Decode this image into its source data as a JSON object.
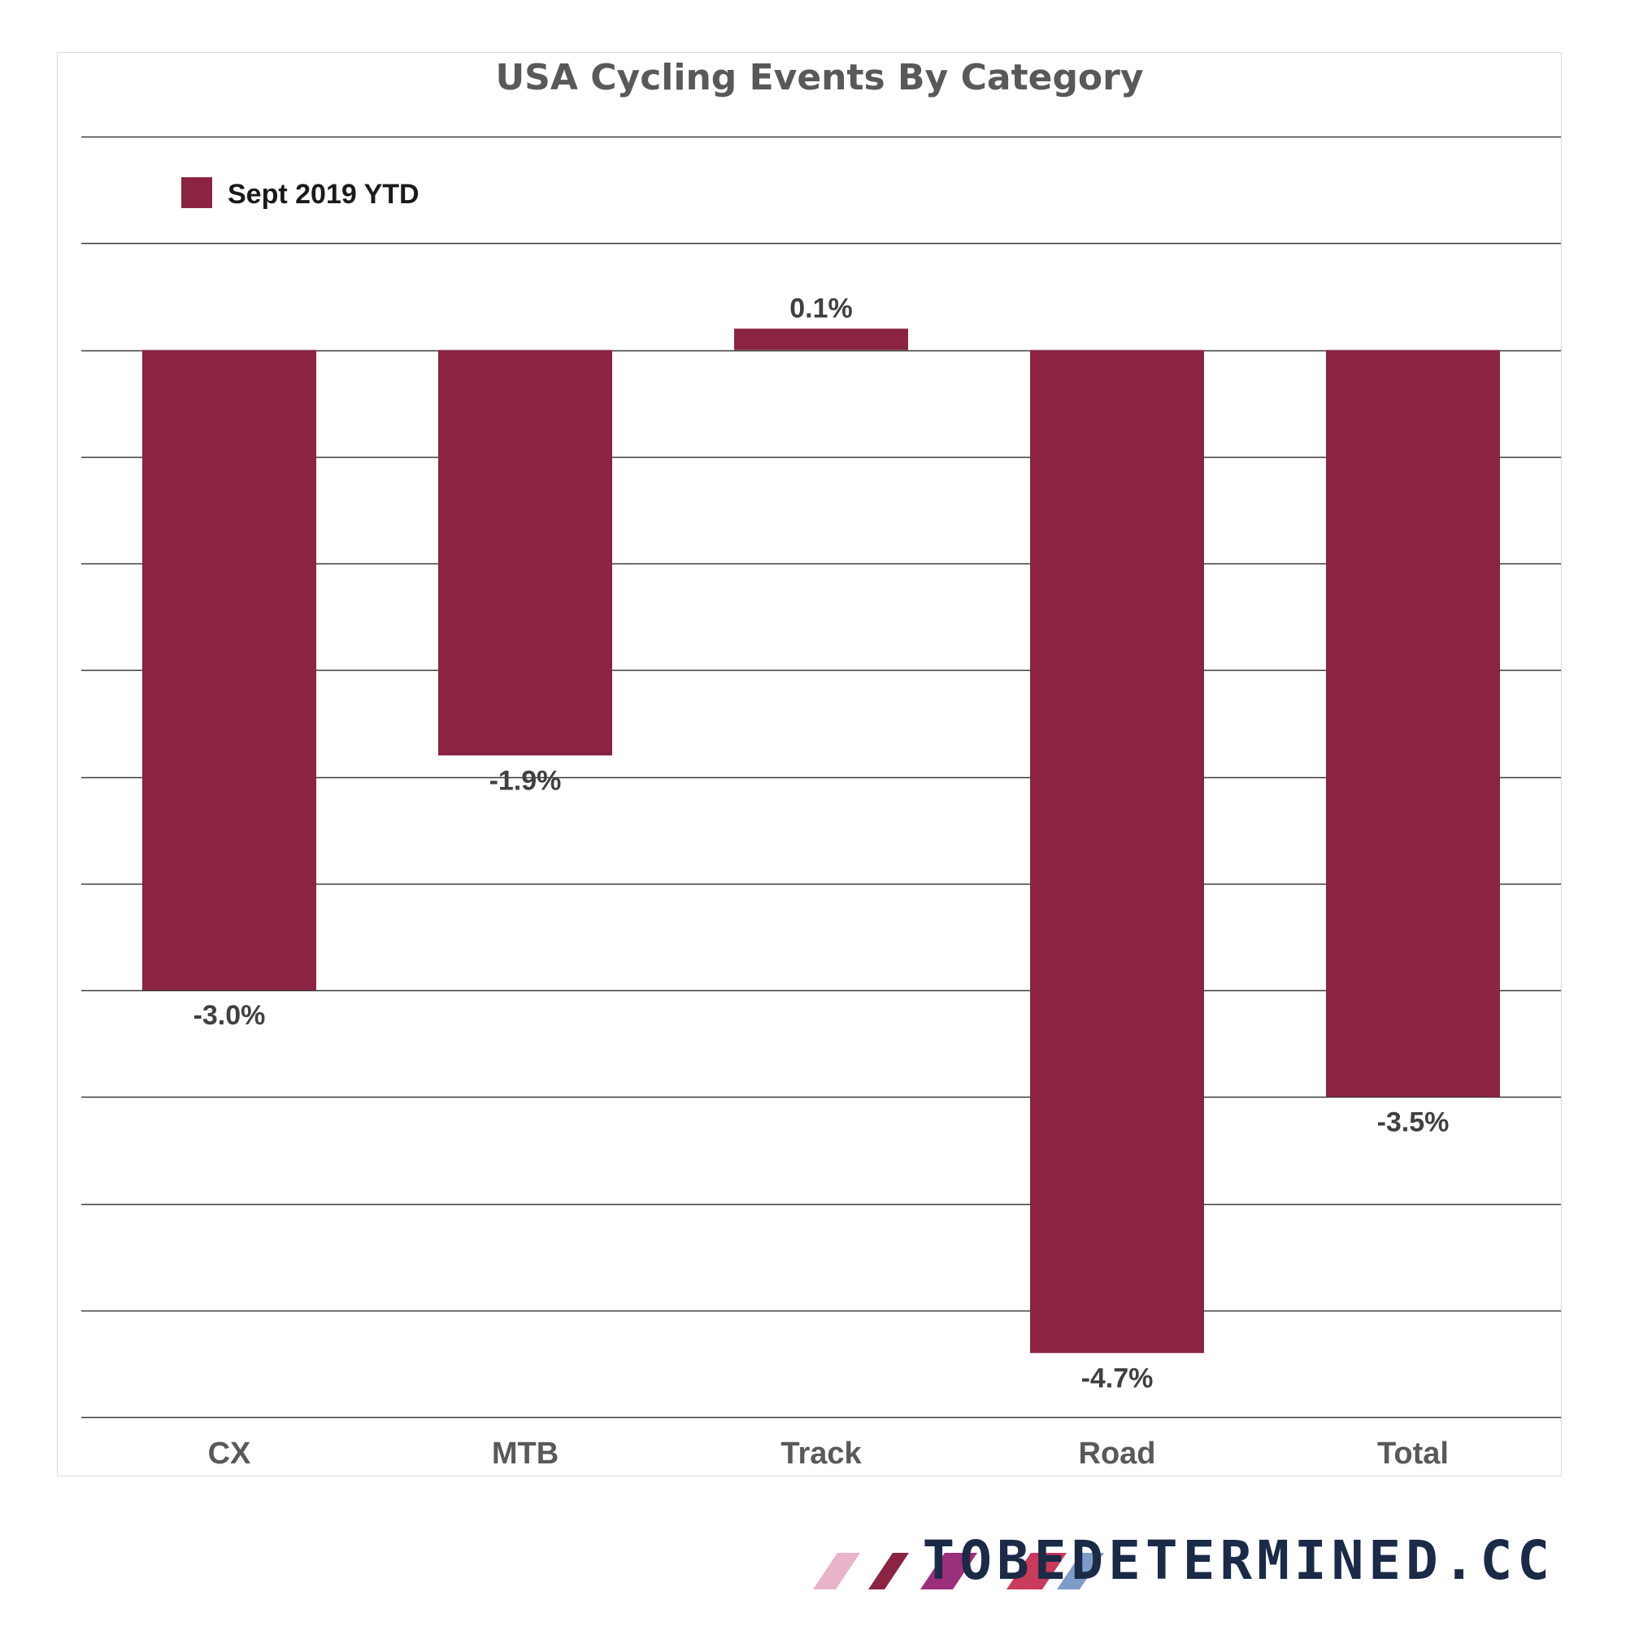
{
  "chart_data": {
    "type": "bar",
    "title": "USA Cycling Events By Category",
    "categories": [
      "CX",
      "MTB",
      "Track",
      "Road",
      "Total"
    ],
    "series": [
      {
        "name": "Sept 2019 YTD",
        "values": [
          -3.0,
          -1.9,
          0.1,
          -4.7,
          -3.5
        ],
        "value_labels": [
          "-3.0%",
          "-1.9%",
          "0.1%",
          "-4.7%",
          "-3.5%"
        ],
        "color": "#8a2442"
      }
    ],
    "xlabel": "",
    "ylabel": "",
    "ylim": [
      -5.0,
      1.0
    ],
    "gridline_step": 0.5,
    "grid": true,
    "legend_position": "top-left"
  },
  "brand": {
    "text": "TOBEDETERMINED.CC",
    "stripe_colors": [
      "#e9b3c9",
      "#8a2442",
      "#9c2f7c",
      "#c93a5c",
      "#7f9cc9"
    ]
  },
  "colors": {
    "gridline": "#3a3a3a",
    "frame": "#d9d9d9",
    "title": "#595959",
    "brand_text": "#1b2a47"
  }
}
